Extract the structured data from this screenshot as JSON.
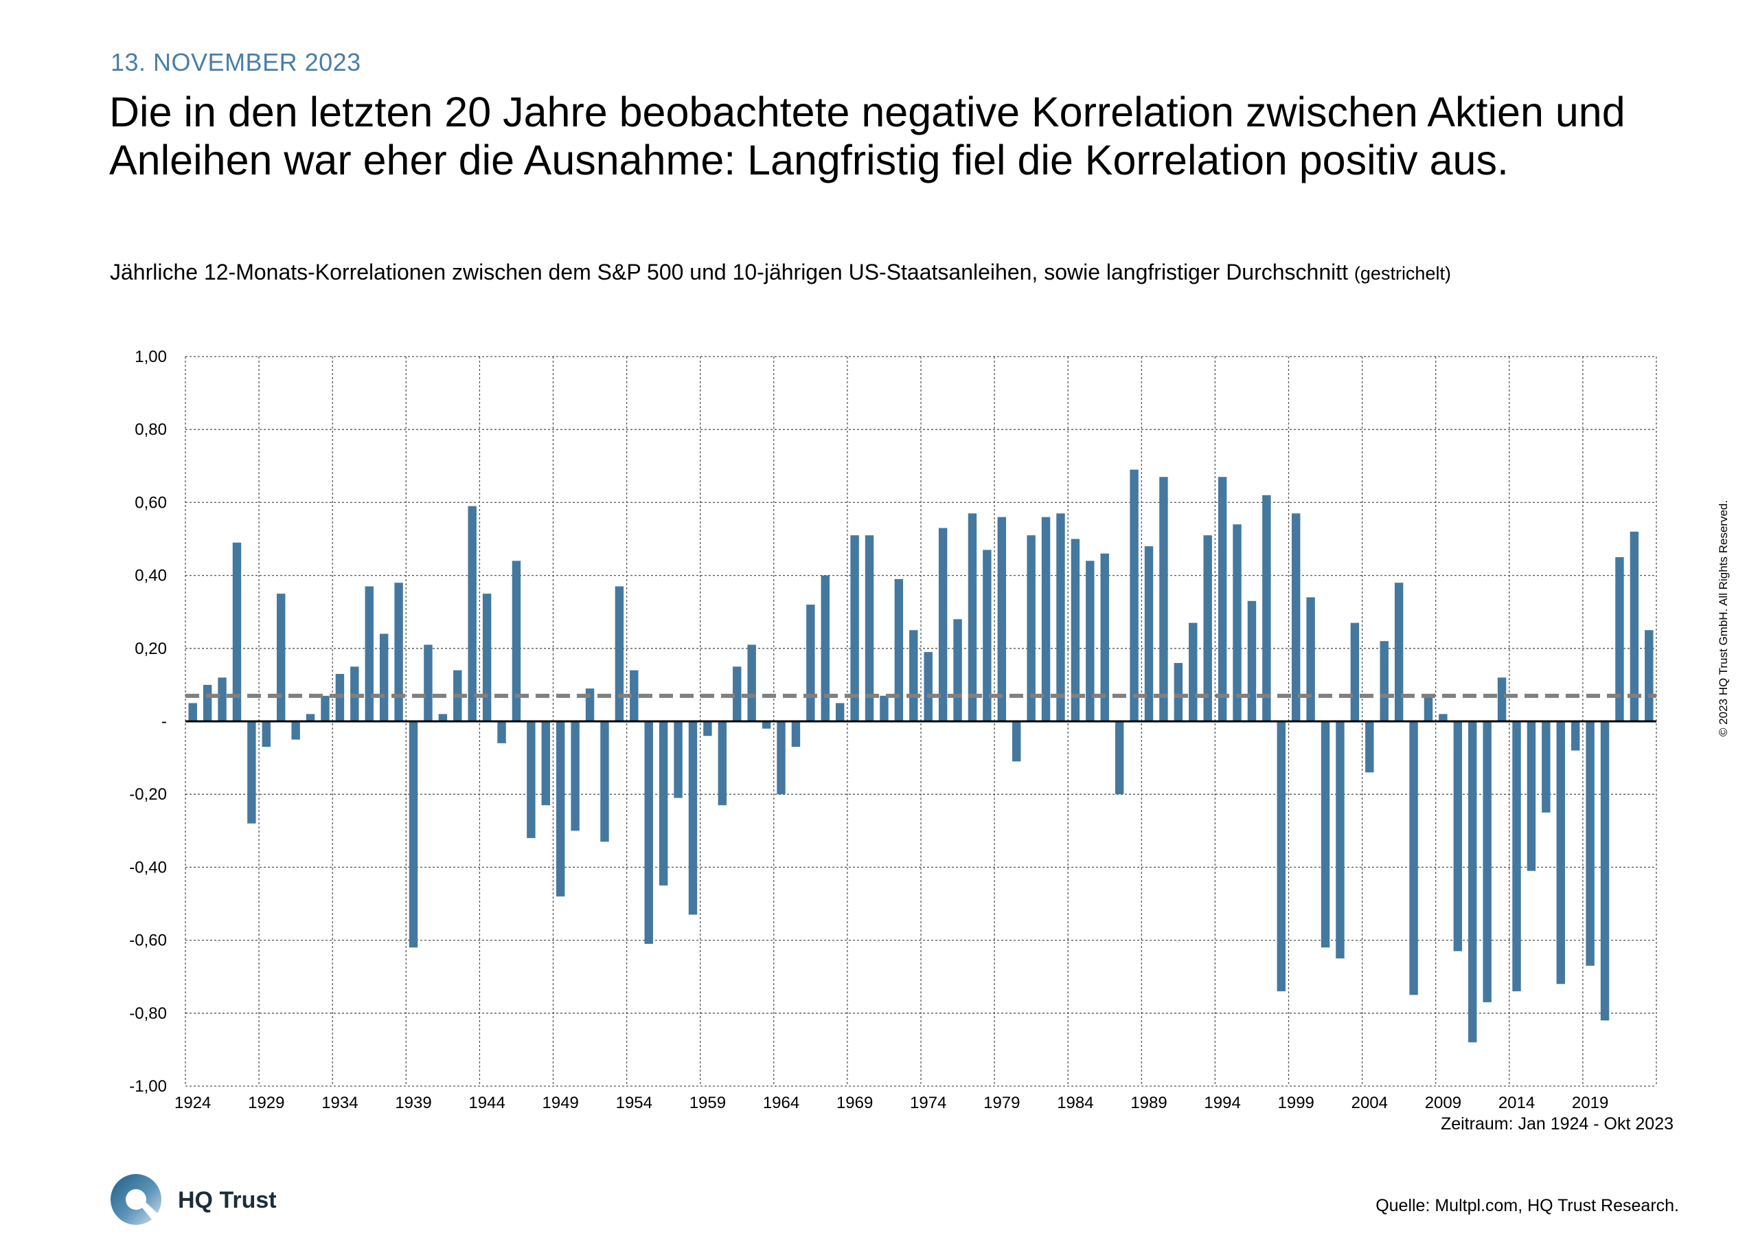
{
  "header": {
    "date": "13. NOVEMBER 2023",
    "headline": "Die in den letzten 20 Jahre beobachtete negative Korrelation zwischen Aktien und Anleihen war eher die Ausnahme: Langfristig fiel die Korrelation positiv aus.",
    "subtitle_main": "Jährliche 12-Monats-Korrelationen zwischen dem S&P 500 und 10-jährigen US-Staatsanleihen, sowie langfristiger Durchschnitt",
    "subtitle_note": "(gestrichelt)"
  },
  "footer": {
    "period": "Zeitraum: Jan 1924 - Okt 2023",
    "copyright": "© 2023 HQ Trust GmbH. All Rights Reserved.",
    "logo_text": "HQ Trust",
    "source": "Quelle: Multpl.com, HQ Trust Research."
  },
  "colors": {
    "bar": "#44789f",
    "average_line": "#808080",
    "grid": "#555555",
    "zero_line": "#000000"
  },
  "chart_data": {
    "type": "bar",
    "title": "",
    "xlabel": "",
    "ylabel": "",
    "ylim": [
      -1.0,
      1.0
    ],
    "grid": true,
    "ytick_values": [
      1.0,
      0.8,
      0.6,
      0.4,
      0.2,
      0,
      -0.2,
      -0.4,
      -0.6,
      -0.8,
      -1.0
    ],
    "ytick_labels": [
      "1,00",
      "0,80",
      "0,60",
      "0,40",
      "0,20",
      "-",
      "-0,20",
      "-0,40",
      "-0,60",
      "-0,80",
      "-1,00"
    ],
    "xtick_labels": [
      "1924",
      "1929",
      "1934",
      "1939",
      "1944",
      "1949",
      "1954",
      "1959",
      "1964",
      "1969",
      "1974",
      "1979",
      "1984",
      "1989",
      "1994",
      "1999",
      "2004",
      "2009",
      "2014",
      "2019"
    ],
    "average_dashed": 0.07,
    "categories": [
      1924,
      1925,
      1926,
      1927,
      1928,
      1929,
      1930,
      1931,
      1932,
      1933,
      1934,
      1935,
      1936,
      1937,
      1938,
      1939,
      1940,
      1941,
      1942,
      1943,
      1944,
      1945,
      1946,
      1947,
      1948,
      1949,
      1950,
      1951,
      1952,
      1953,
      1954,
      1955,
      1956,
      1957,
      1958,
      1959,
      1960,
      1961,
      1962,
      1963,
      1964,
      1965,
      1966,
      1967,
      1968,
      1969,
      1970,
      1971,
      1972,
      1973,
      1974,
      1975,
      1976,
      1977,
      1978,
      1979,
      1980,
      1981,
      1982,
      1983,
      1984,
      1985,
      1986,
      1987,
      1988,
      1989,
      1990,
      1991,
      1992,
      1993,
      1994,
      1995,
      1996,
      1997,
      1998,
      1999,
      2000,
      2001,
      2002,
      2003,
      2004,
      2005,
      2006,
      2007,
      2008,
      2009,
      2010,
      2011,
      2012,
      2013,
      2014,
      2015,
      2016,
      2017,
      2018,
      2019,
      2020,
      2021,
      2022,
      2023
    ],
    "values": [
      0.05,
      0.1,
      0.12,
      0.49,
      -0.28,
      -0.07,
      0.35,
      -0.05,
      0.02,
      0.07,
      0.13,
      0.15,
      0.37,
      0.24,
      0.38,
      -0.62,
      0.21,
      0.02,
      0.14,
      0.59,
      0.35,
      -0.06,
      0.44,
      -0.32,
      -0.23,
      -0.48,
      -0.3,
      0.09,
      -0.33,
      0.37,
      0.14,
      -0.61,
      -0.45,
      -0.21,
      -0.53,
      -0.04,
      -0.23,
      0.15,
      0.21,
      -0.02,
      -0.2,
      -0.07,
      0.32,
      0.4,
      0.05,
      0.51,
      0.51,
      0.07,
      0.39,
      0.25,
      0.19,
      0.53,
      0.28,
      0.57,
      0.47,
      0.56,
      -0.11,
      0.51,
      0.56,
      0.57,
      0.5,
      0.44,
      0.46,
      -0.2,
      0.69,
      0.48,
      0.67,
      0.16,
      0.27,
      0.51,
      0.67,
      0.54,
      0.33,
      0.62,
      -0.74,
      0.57,
      0.34,
      -0.62,
      -0.65,
      0.27,
      -0.14,
      0.22,
      0.38,
      -0.75,
      0.07,
      0.02,
      -0.63,
      -0.88,
      -0.77,
      0.12,
      -0.74,
      -0.41,
      -0.25,
      -0.72,
      -0.08,
      -0.67,
      -0.82,
      0.45,
      0.52,
      0.25
    ]
  }
}
